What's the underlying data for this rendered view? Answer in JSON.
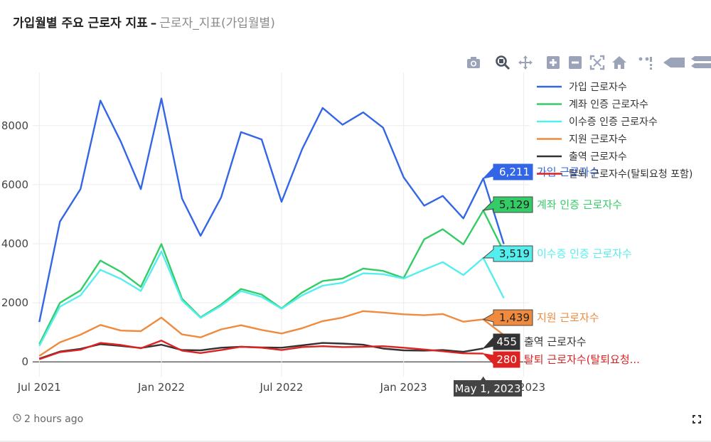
{
  "header": {
    "title": "가입월별 주요 근로자 지표",
    "separator": "–",
    "subtitle": "근로자_지표(가입월별)"
  },
  "footer": {
    "updated": "2 hours ago"
  },
  "modebar_icons": [
    "camera-icon",
    "zoom-icon",
    "pan-icon",
    "zoom-in-icon",
    "zoom-out-icon",
    "autoscale-icon",
    "home-icon",
    "spike-lines-icon",
    "hover-closest-icon",
    "hover-compare-icon"
  ],
  "hover": {
    "x_label": "May 1, 2023",
    "items": [
      {
        "value": "6,211",
        "name": "가입 근로자수",
        "color": "#3366e6"
      },
      {
        "value": "5,129",
        "name": "계좌 인증 근로자수",
        "color": "#33cc66"
      },
      {
        "value": "3,519",
        "name": "이수증 인증 근로자수",
        "color": "#55eeee"
      },
      {
        "value": "1,439",
        "name": "지원 근로자수",
        "color": "#f08a3c"
      },
      {
        "value": "455",
        "name": "출역 근로자수",
        "color": "#333333"
      },
      {
        "value": "280",
        "name": "탈퇴 근로자수(탈퇴요청...",
        "color": "#dd2222"
      }
    ]
  },
  "chart_data": {
    "type": "line",
    "x": [
      "2021-07",
      "2021-08",
      "2021-09",
      "2021-10",
      "2021-11",
      "2021-12",
      "2022-01",
      "2022-02",
      "2022-03",
      "2022-04",
      "2022-05",
      "2022-06",
      "2022-07",
      "2022-08",
      "2022-09",
      "2022-10",
      "2022-11",
      "2022-12",
      "2023-01",
      "2023-02",
      "2023-03",
      "2023-04",
      "2023-05",
      "2023-06"
    ],
    "x_ticks": [
      {
        "x": "2021-07",
        "label": "Jul 2021"
      },
      {
        "x": "2022-01",
        "label": "Jan 2022"
      },
      {
        "x": "2022-07",
        "label": "Jul 2022"
      },
      {
        "x": "2023-01",
        "label": "Jan 2023"
      },
      {
        "x": "2023-07",
        "label": "Jul 2023"
      }
    ],
    "x_range": [
      "2021-06-21",
      "2023-07-10"
    ],
    "ylim": [
      -500,
      9800
    ],
    "y_ticks": [
      0,
      2000,
      4000,
      6000,
      8000
    ],
    "grid": true,
    "legend_position": "top-right",
    "series": [
      {
        "name": "가입 근로자수",
        "color": "#3366e6",
        "values": [
          1350,
          4750,
          5850,
          8850,
          7450,
          5850,
          8920,
          5530,
          4270,
          5570,
          7780,
          7530,
          5420,
          7200,
          8600,
          8030,
          8450,
          7930,
          6250,
          5290,
          5620,
          4860,
          6211,
          3990
        ]
      },
      {
        "name": "계좌 인증 근로자수",
        "color": "#33cc66",
        "values": [
          600,
          2000,
          2420,
          3430,
          3050,
          2540,
          3990,
          2140,
          1510,
          1940,
          2470,
          2280,
          1810,
          2350,
          2740,
          2820,
          3160,
          3080,
          2840,
          4150,
          4490,
          3980,
          5129,
          3730
        ]
      },
      {
        "name": "이수증 인증 근로자수",
        "color": "#55eeee",
        "values": [
          540,
          1870,
          2250,
          3120,
          2810,
          2400,
          3740,
          2080,
          1490,
          1900,
          2400,
          2200,
          1800,
          2250,
          2580,
          2680,
          3000,
          2970,
          2820,
          3120,
          3380,
          2940,
          3519,
          2160
        ]
      },
      {
        "name": "지원 근로자수",
        "color": "#f08a3c",
        "values": [
          200,
          660,
          920,
          1250,
          1060,
          1040,
          1500,
          930,
          830,
          1100,
          1240,
          1080,
          960,
          1140,
          1380,
          1500,
          1720,
          1670,
          1610,
          1580,
          1620,
          1360,
          1439,
          910
        ]
      },
      {
        "name": "출역 근로자수",
        "color": "#333333",
        "values": [
          110,
          350,
          440,
          600,
          540,
          470,
          580,
          400,
          390,
          480,
          510,
          490,
          480,
          560,
          640,
          620,
          580,
          450,
          390,
          380,
          400,
          340,
          455,
          null
        ]
      },
      {
        "name": "탈퇴 근로자수(탈퇴요청 포함)",
        "color": "#dd2222",
        "values": [
          90,
          330,
          410,
          640,
          570,
          460,
          720,
          380,
          300,
          400,
          510,
          480,
          400,
          500,
          530,
          500,
          510,
          530,
          480,
          420,
          360,
          290,
          280,
          null
        ]
      }
    ]
  }
}
